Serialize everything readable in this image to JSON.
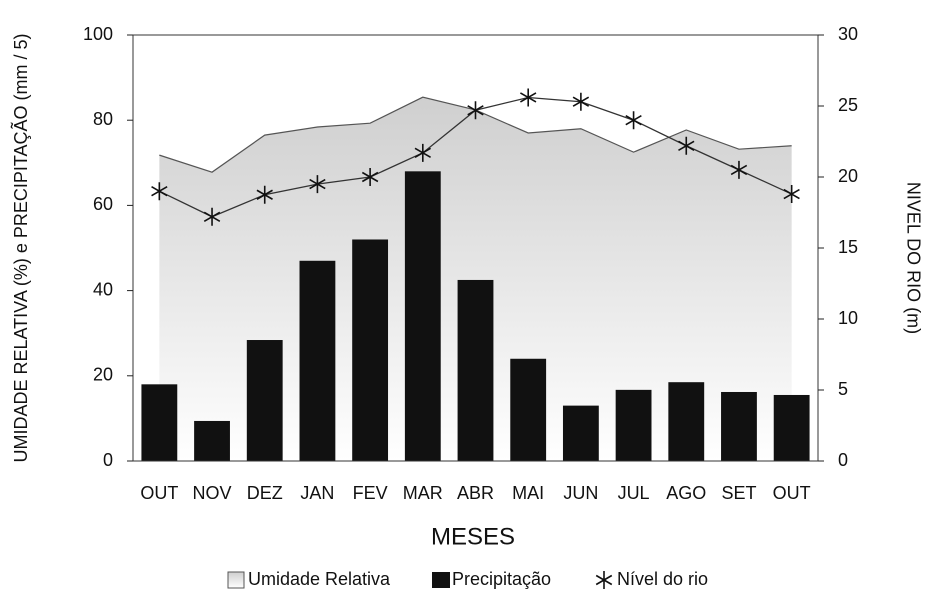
{
  "chart_data": {
    "type": "combo",
    "categories": [
      "OUT",
      "NOV",
      "DEZ",
      "JAN",
      "FEV",
      "MAR",
      "ABR",
      "MAI",
      "JUN",
      "JUL",
      "AGO",
      "SET",
      "OUT"
    ],
    "xlabel": "MESES",
    "ylabel": "UMIDADE RELATIVA (%) e PRECIPITAÇÃO (mm / 5)",
    "y2label": "NIVEL DO RIO (m)",
    "ylim": [
      0,
      100
    ],
    "yticks": [
      0,
      20,
      40,
      60,
      80,
      100
    ],
    "y2lim": [
      0,
      30
    ],
    "y2ticks": [
      0,
      5,
      10,
      15,
      20,
      25,
      30
    ],
    "series": [
      {
        "name": "Umidade Relativa",
        "type": "area",
        "color": "#d8d8d8",
        "values": [
          71.8,
          67.8,
          76.5,
          78.4,
          79.3,
          85.4,
          82.4,
          77,
          78,
          72.5,
          77.7,
          73.2,
          74
        ]
      },
      {
        "name": "Precipitação",
        "type": "bar",
        "color": "#111111",
        "values": [
          18,
          9.4,
          28.4,
          47,
          52,
          68,
          42.5,
          24,
          13,
          16.7,
          18.5,
          16.2,
          15.5
        ]
      },
      {
        "name": "Nível do rio",
        "type": "line",
        "axis": "y2",
        "marker": "star",
        "color": "#333333",
        "values": [
          19,
          17.2,
          18.75,
          19.5,
          20,
          21.7,
          24.7,
          25.6,
          25.3,
          24,
          22.2,
          20.5,
          18.8
        ]
      }
    ],
    "legend": "bottom"
  }
}
